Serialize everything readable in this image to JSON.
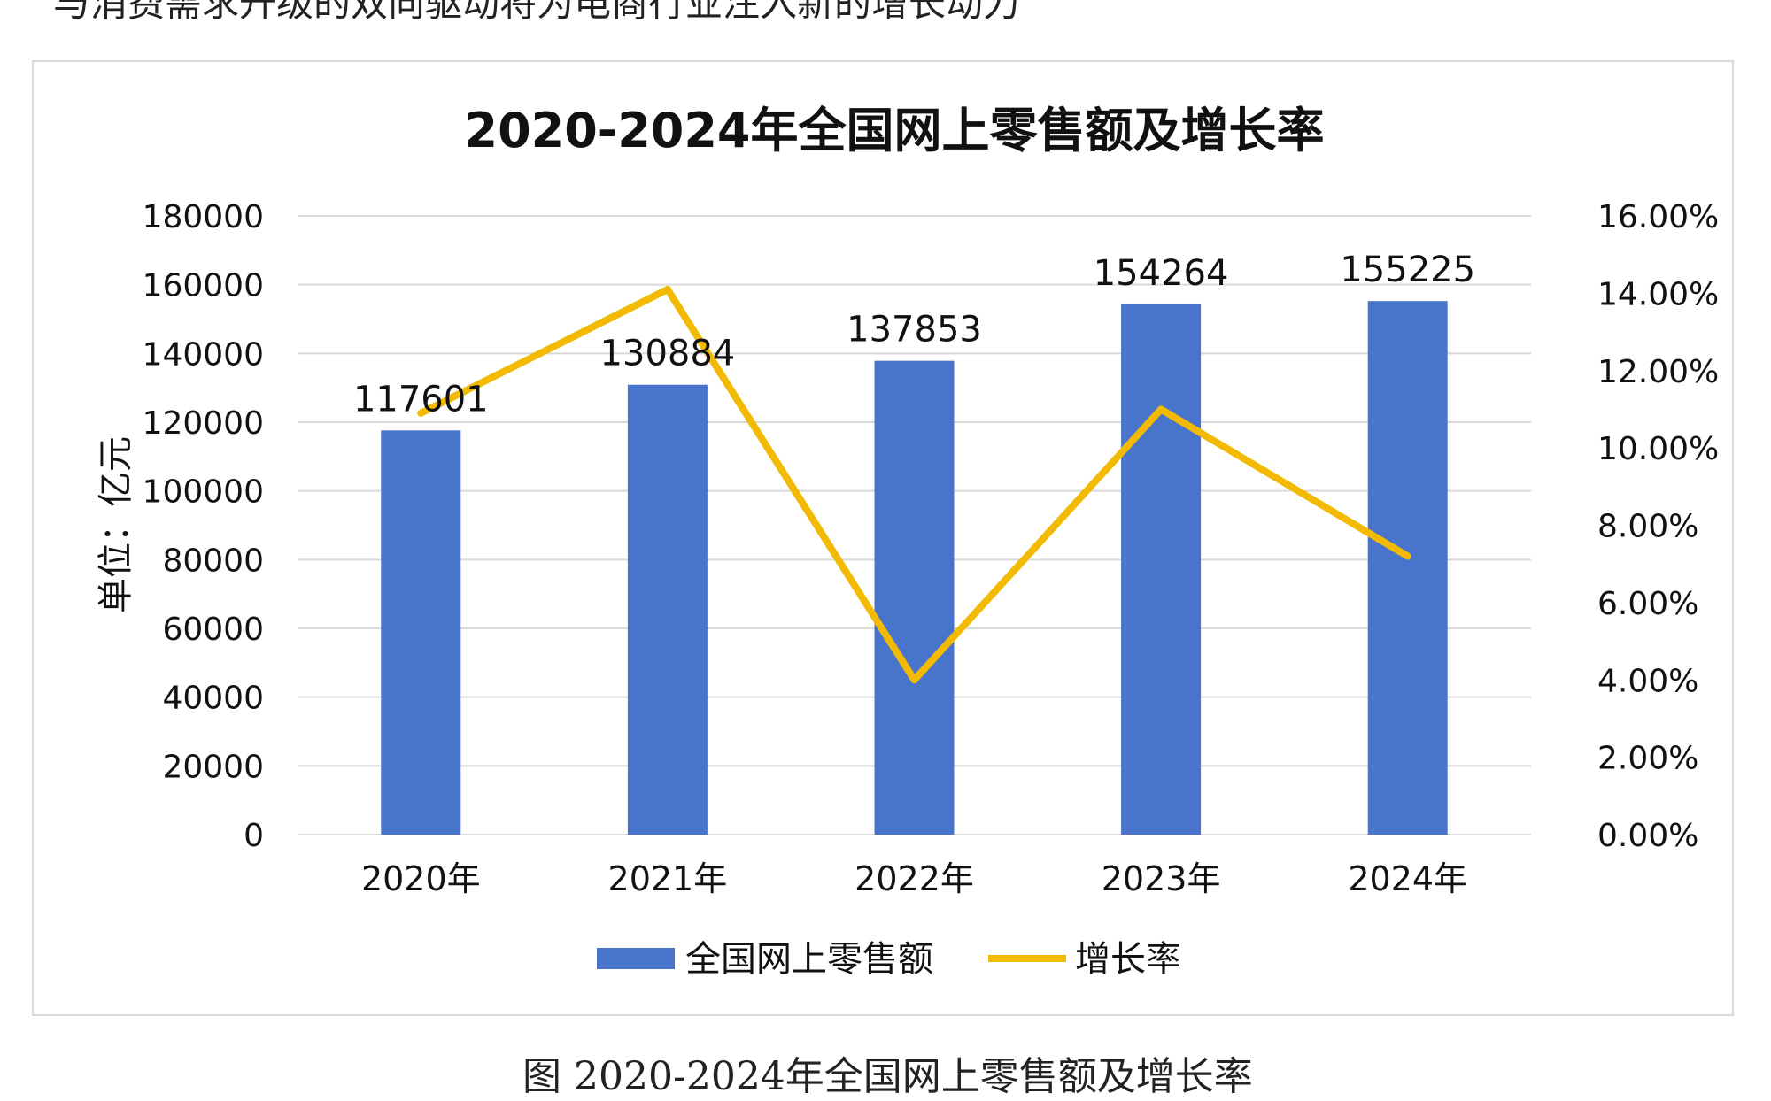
{
  "page": {
    "top_text": "与消费需求升级的双向驱动将为电商行业注入新的增长动力",
    "caption": "图 2020-2024年全国网上零售额及增长率"
  },
  "colors": {
    "bar": "#4874CB",
    "line": "#F2BA02",
    "grid": "#D9D9D9",
    "text": "#111111"
  },
  "chart_data": {
    "type": "bar",
    "title": "2020-2024年全国网上零售额及增长率",
    "ylabel": "单位：亿元",
    "categories": [
      "2020年",
      "2021年",
      "2022年",
      "2023年",
      "2024年"
    ],
    "ylim": [
      0,
      180000
    ],
    "yticks": [
      0,
      20000,
      40000,
      60000,
      80000,
      100000,
      120000,
      140000,
      160000,
      180000
    ],
    "y2lim": [
      0,
      16
    ],
    "y2ticks": [
      "0.00%",
      "2.00%",
      "4.00%",
      "6.00%",
      "8.00%",
      "10.00%",
      "12.00%",
      "14.00%",
      "16.00%"
    ],
    "grid": true,
    "legend_position": "bottom",
    "series": [
      {
        "name": "全国网上零售额",
        "kind": "bar",
        "axis": "left",
        "values": [
          117601,
          130884,
          137853,
          154264,
          155225
        ],
        "labels": [
          "117601",
          "130884",
          "137853",
          "154264",
          "155225"
        ]
      },
      {
        "name": "增长率",
        "kind": "line",
        "axis": "right",
        "values": [
          10.9,
          14.1,
          4.0,
          11.0,
          7.2
        ]
      }
    ]
  }
}
